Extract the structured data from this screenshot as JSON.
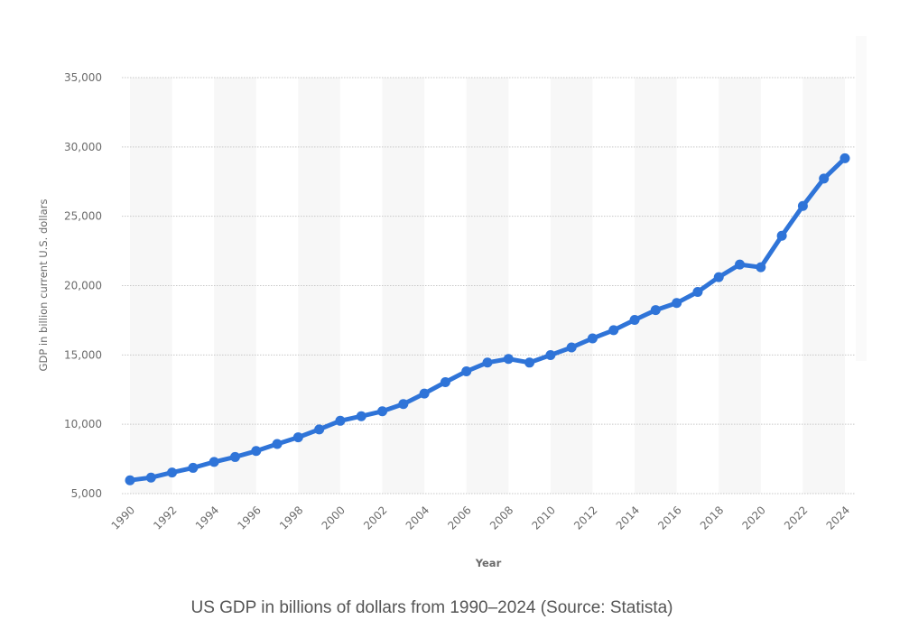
{
  "caption": "US GDP in billions of dollars from 1990–2024 (Source: Statista)",
  "colors": {
    "line": "#2f74d8",
    "band": "#f7f7f7",
    "grid": "#c8c8c8",
    "text": "#6b6b6b"
  },
  "chart_data": {
    "type": "line",
    "title": "",
    "xlabel": "Year",
    "ylabel": "GDP in billion current U.S. dollars",
    "ylim": [
      5000,
      35000
    ],
    "yticks": [
      5000,
      10000,
      15000,
      20000,
      25000,
      30000,
      35000
    ],
    "ytick_labels": [
      "5,000",
      "10,000",
      "15,000",
      "20,000",
      "25,000",
      "30,000",
      "35,000"
    ],
    "xlim": [
      1990,
      2024
    ],
    "xticks": [
      1990,
      1992,
      1994,
      1996,
      1998,
      2000,
      2002,
      2004,
      2006,
      2008,
      2010,
      2012,
      2014,
      2016,
      2018,
      2020,
      2022,
      2024
    ],
    "xtick_labels": [
      "1990",
      "1992",
      "1994",
      "1996",
      "1998",
      "2000",
      "2002",
      "2004",
      "2006",
      "2008",
      "2010",
      "2012",
      "2014",
      "2016",
      "2018",
      "2020",
      "2022",
      "2024"
    ],
    "grid": "horizontal-dotted",
    "legend": "none",
    "x": [
      1990,
      1991,
      1992,
      1993,
      1994,
      1995,
      1996,
      1997,
      1998,
      1999,
      2000,
      2001,
      2002,
      2003,
      2004,
      2005,
      2006,
      2007,
      2008,
      2009,
      2010,
      2011,
      2012,
      2013,
      2014,
      2015,
      2016,
      2017,
      2018,
      2019,
      2020,
      2021,
      2022,
      2023,
      2024
    ],
    "series": [
      {
        "name": "US GDP",
        "values": [
          5963,
          6158,
          6520,
          6859,
          7287,
          7640,
          8073,
          8578,
          9063,
          9631,
          10251,
          10582,
          10936,
          11458,
          12214,
          13037,
          13815,
          14452,
          14713,
          14449,
          14992,
          15543,
          16197,
          16785,
          17527,
          18238,
          18745,
          19543,
          20612,
          21521,
          21323,
          23594,
          25744,
          27721,
          29185
        ]
      }
    ]
  }
}
